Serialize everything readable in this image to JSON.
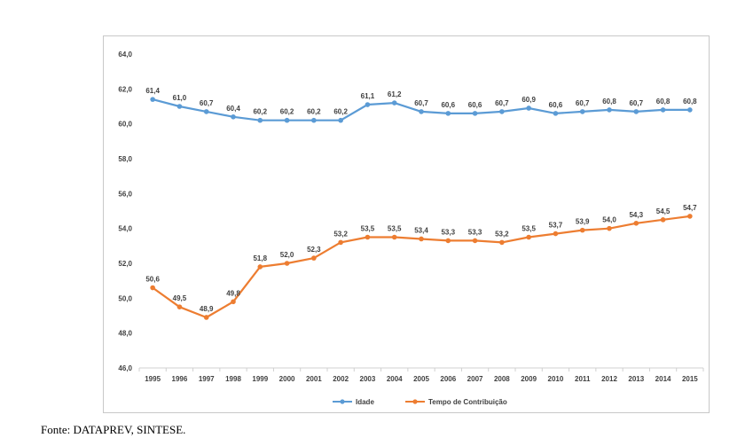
{
  "chart_data": {
    "type": "line",
    "categories": [
      "1995",
      "1996",
      "1997",
      "1998",
      "1999",
      "2000",
      "2001",
      "2002",
      "2003",
      "2004",
      "2005",
      "2006",
      "2007",
      "2008",
      "2009",
      "2010",
      "2011",
      "2012",
      "2013",
      "2014",
      "2015"
    ],
    "series": [
      {
        "name": "Idade",
        "color": "#5b9bd5",
        "values": [
          61.4,
          61.0,
          60.7,
          60.4,
          60.2,
          60.2,
          60.2,
          60.2,
          61.1,
          61.2,
          60.7,
          60.6,
          60.6,
          60.7,
          60.9,
          60.6,
          60.7,
          60.8,
          60.7,
          60.8,
          60.8
        ],
        "labels": [
          "61,4",
          "61,0",
          "60,7",
          "60,4",
          "60,2",
          "60,2",
          "60,2",
          "60,2",
          "61,1",
          "61,2",
          "60,7",
          "60,6",
          "60,6",
          "60,7",
          "60,9",
          "60,6",
          "60,7",
          "60,8",
          "60,7",
          "60,8",
          "60,8"
        ]
      },
      {
        "name": "Tempo de Contribuição",
        "color": "#ed7d31",
        "values": [
          50.6,
          49.5,
          48.9,
          49.8,
          51.8,
          52.0,
          52.3,
          53.2,
          53.5,
          53.5,
          53.4,
          53.3,
          53.3,
          53.2,
          53.5,
          53.7,
          53.9,
          54.0,
          54.3,
          54.5,
          54.7
        ],
        "labels": [
          "50,6",
          "49,5",
          "48,9",
          "49,8",
          "51,8",
          "52,0",
          "52,3",
          "53,2",
          "53,5",
          "53,5",
          "53,4",
          "53,3",
          "53,3",
          "53,2",
          "53,5",
          "53,7",
          "53,9",
          "54,0",
          "54,3",
          "54,5",
          "54,7"
        ]
      }
    ],
    "ylim": [
      46,
      64
    ],
    "yticks": [
      46,
      48,
      50,
      52,
      54,
      56,
      58,
      60,
      62,
      64
    ],
    "ytick_labels": [
      "46,0",
      "48,0",
      "50,0",
      "52,0",
      "54,0",
      "56,0",
      "58,0",
      "60,0",
      "62,0",
      "64,0"
    ],
    "grid": false,
    "legend_position": "bottom"
  },
  "source": "Fonte: DATAPREV, SINTESE."
}
